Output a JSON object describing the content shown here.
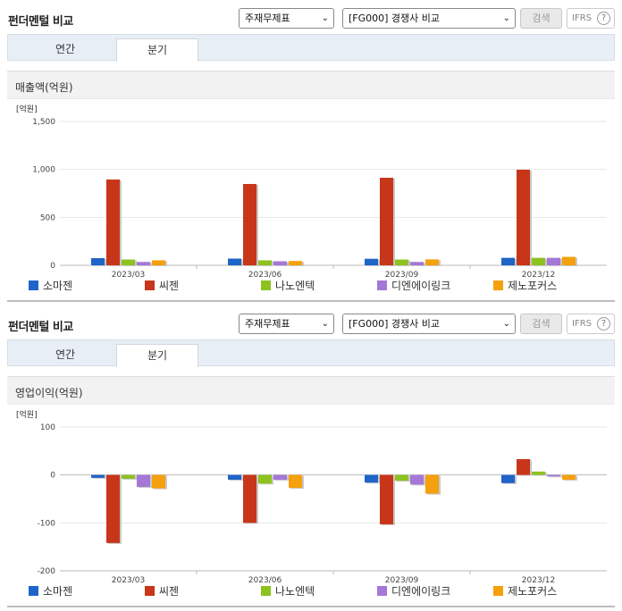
{
  "colors": {
    "s0": "#1f64c8",
    "s1": "#c8361a",
    "s2": "#8dc21f",
    "s3": "#a577d6",
    "s4": "#f5a00d"
  },
  "panels": [
    {
      "title": "펀더멘털 비교",
      "select1": "주재무제표",
      "select2": "[FG000] 경쟁사 비교",
      "search_label": "검색",
      "ifrs_label": "IFRS",
      "help_label": "?",
      "tabs": [
        "연간",
        "분기"
      ],
      "metric": "매출액(억원)",
      "unit": "[억원]",
      "legend": [
        "소마젠",
        "씨젠",
        "나노엔텍",
        "디엔에이링크",
        "제노포커스"
      ]
    },
    {
      "title": "펀더멘털 비교",
      "select1": "주재무제표",
      "select2": "[FG000] 경쟁사 비교",
      "search_label": "검색",
      "ifrs_label": "IFRS",
      "help_label": "?",
      "tabs": [
        "연간",
        "분기"
      ],
      "metric": "영업이익(억원)",
      "unit": "[억원]",
      "legend": [
        "소마젠",
        "씨젠",
        "나노엔텍",
        "디엔에이링크",
        "제노포커스"
      ]
    }
  ],
  "chart_data": [
    {
      "type": "bar",
      "title": "매출액(억원)",
      "ylabel": "[억원]",
      "categories": [
        "2023/03",
        "2023/06",
        "2023/09",
        "2023/12"
      ],
      "ylim": [
        0,
        1500
      ],
      "yticks": [
        0,
        500,
        1000,
        1500
      ],
      "ytick_labels": [
        "0",
        "500",
        "1,000",
        "1,500"
      ],
      "grid": true,
      "legend_position": "bottom",
      "series": [
        {
          "name": "소마젠",
          "values": [
            75,
            70,
            68,
            78
          ]
        },
        {
          "name": "씨젠",
          "values": [
            895,
            848,
            913,
            997
          ]
        },
        {
          "name": "나노엔텍",
          "values": [
            60,
            52,
            60,
            78
          ]
        },
        {
          "name": "디엔에이링크",
          "values": [
            35,
            42,
            35,
            78
          ]
        },
        {
          "name": "제노포커스",
          "values": [
            52,
            45,
            62,
            88
          ]
        }
      ]
    },
    {
      "type": "bar",
      "title": "영업이익(억원)",
      "ylabel": "[억원]",
      "categories": [
        "2023/03",
        "2023/06",
        "2023/09",
        "2023/12"
      ],
      "ylim": [
        -200,
        100
      ],
      "yticks": [
        -200,
        -100,
        0,
        100
      ],
      "ytick_labels": [
        "-200",
        "-100",
        "0",
        "100"
      ],
      "grid": true,
      "legend_position": "bottom",
      "series": [
        {
          "name": "소마젠",
          "values": [
            -6,
            -10,
            -16,
            -17
          ]
        },
        {
          "name": "씨젠",
          "values": [
            -142,
            -100,
            -103,
            33
          ]
        },
        {
          "name": "나노엔텍",
          "values": [
            -8,
            -18,
            -12,
            7
          ]
        },
        {
          "name": "디엔에이링크",
          "values": [
            -25,
            -10,
            -20,
            -3
          ]
        },
        {
          "name": "제노포커스",
          "values": [
            -28,
            -27,
            -39,
            -10
          ]
        }
      ]
    }
  ]
}
